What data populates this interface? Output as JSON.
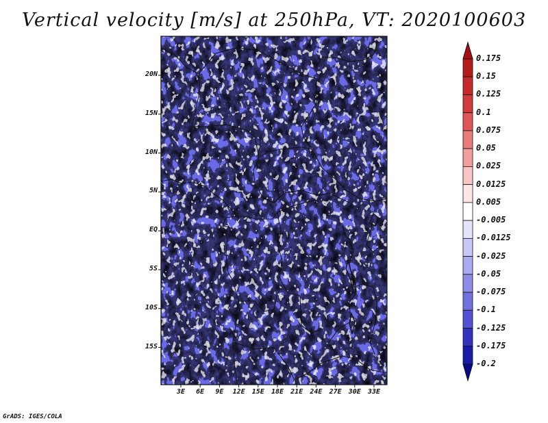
{
  "title": "Vertical velocity [m/s] at 250hPa, VT: 2020100603",
  "credit": "GrADS: IGES/COLA",
  "map": {
    "lat_ticks": [
      "20N",
      "15N",
      "10N",
      "5N",
      "EQ",
      "5S",
      "10S",
      "15S"
    ],
    "lon_ticks": [
      "3E",
      "6E",
      "9E",
      "12E",
      "15E",
      "18E",
      "21E",
      "24E",
      "27E",
      "30E",
      "33E"
    ]
  },
  "colorbar": {
    "labels": [
      "0.175",
      "0.15",
      "0.125",
      "0.1",
      "0.075",
      "0.05",
      "0.025",
      "0.0125",
      "0.005",
      "-0.005",
      "-0.0125",
      "-0.025",
      "-0.05",
      "-0.075",
      "-0.1",
      "-0.125",
      "-0.175",
      "-0.2"
    ],
    "colors": [
      "#a50f15",
      "#b41c1c",
      "#c42a2a",
      "#d23b3b",
      "#de5757",
      "#e87a7a",
      "#f19e9e",
      "#f8c4c4",
      "#fde6e6",
      "#ffffff",
      "#e4e4fb",
      "#c8c8f6",
      "#aaaaf0",
      "#8d8de8",
      "#7070de",
      "#5252d2",
      "#3333bf",
      "#1a1aa8",
      "#08088a"
    ]
  },
  "colors": {
    "positive": "#e0585e",
    "negative": "#6a6ae6"
  }
}
